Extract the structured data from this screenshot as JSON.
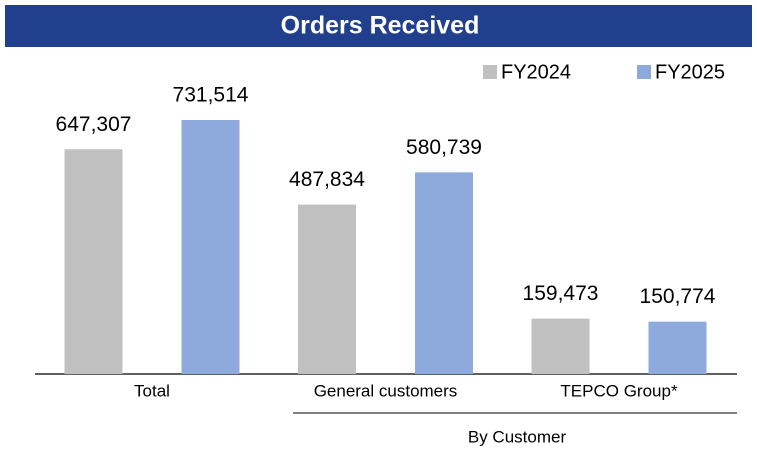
{
  "chart_data": {
    "type": "bar",
    "title": "Orders Received",
    "categories": [
      "Total",
      "General customers",
      "TEPCO Group*"
    ],
    "group_label": "By Customer",
    "legend": "top-right",
    "series": [
      {
        "name": "FY2024",
        "color": "#c0c0c0",
        "values": [
          647307,
          487834,
          159473
        ],
        "value_labels": [
          "647,307",
          "487,834",
          "159,473"
        ]
      },
      {
        "name": "FY2025",
        "color": "#8eaadc",
        "values": [
          731514,
          580739,
          150774
        ],
        "value_labels": [
          "731,514",
          "580,739",
          "150,774"
        ]
      }
    ]
  }
}
